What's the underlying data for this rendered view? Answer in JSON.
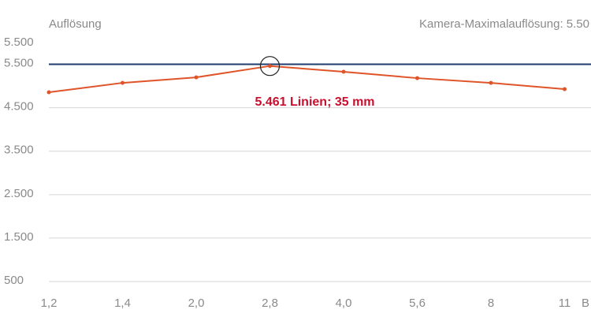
{
  "chart_data": {
    "type": "line",
    "y_axis_label": "Auflösung",
    "x_axis_label": "B",
    "max_resolution_label": "Kamera-Maximalauflösung: 5.50",
    "max_resolution": 5500,
    "max_resolution_color": "#1f3c6e",
    "y_top_label": "5.500",
    "categories": [
      "1,2",
      "1,4",
      "2,0",
      "2,8",
      "4,0",
      "5,6",
      "8",
      "11"
    ],
    "series": [
      {
        "name": "Auflösung",
        "color": "#e0542a",
        "values": [
          4856,
          5073,
          5200,
          5461,
          5328,
          5182,
          5073,
          4928
        ]
      }
    ],
    "annotation": "5.461 Linien; 35 mm",
    "ylim": [
      500,
      6000
    ],
    "yticks": [
      500,
      {
        "value": 1500,
        "label": "1.500"
      },
      {
        "value": 2500,
        "label": "2.500"
      },
      {
        "value": 3500,
        "label": "3.500"
      },
      {
        "value": 4500,
        "label": "4.500"
      },
      {
        "value": 5500,
        "label": "5.500"
      }
    ],
    "grid": true
  }
}
